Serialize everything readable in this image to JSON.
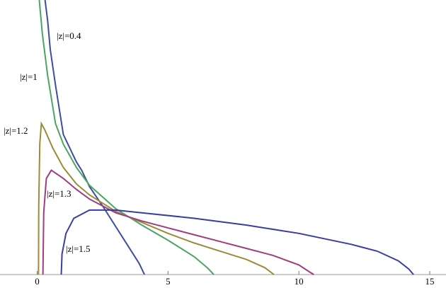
{
  "chart_data": {
    "type": "line",
    "xlim": [
      -1.15,
      15.27
    ],
    "ylim": [
      0,
      2
    ],
    "xticks": [
      0,
      5,
      10,
      15
    ],
    "series": [
      {
        "name": "|z|=0.4",
        "color": "#3c4ca2",
        "x": [
          0.3,
          0.4,
          0.5,
          0.7,
          1.0,
          1.5,
          1.7,
          2.0,
          2.5,
          3.0,
          3.5,
          3.9,
          4.1
        ],
        "values": [
          2.0,
          1.85,
          1.64,
          1.38,
          1.02,
          0.82,
          0.76,
          0.64,
          0.5,
          0.35,
          0.2,
          0.08,
          0
        ]
      },
      {
        "name": "|z|=1",
        "color": "#4aa564",
        "x": [
          0.08,
          0.2,
          0.4,
          0.7,
          1.0,
          1.5,
          2,
          3,
          4,
          5,
          6,
          6.5,
          6.75
        ],
        "values": [
          2.0,
          1.75,
          1.45,
          1.1,
          0.95,
          0.78,
          0.65,
          0.48,
          0.36,
          0.25,
          0.13,
          0.05,
          0
        ]
      },
      {
        "name": "|z|=1.2",
        "color": "#9b8b3a",
        "x": [
          0.05,
          0.06,
          0.1,
          0.16,
          0.3,
          0.6,
          1,
          1.5,
          2,
          3,
          4,
          5,
          6,
          7,
          8,
          8.7,
          9.05
        ],
        "values": [
          0,
          0.5,
          0.95,
          1.1,
          1.05,
          0.92,
          0.78,
          0.66,
          0.58,
          0.46,
          0.38,
          0.3,
          0.23,
          0.17,
          0.11,
          0.05,
          0
        ]
      },
      {
        "name": "|z|=1.3",
        "color": "#a03c80",
        "x": [
          0.22,
          0.25,
          0.35,
          0.54,
          1,
          1.5,
          2,
          3,
          4,
          5,
          6,
          7,
          8,
          9,
          10,
          10.4,
          10.57
        ],
        "values": [
          0,
          0.45,
          0.7,
          0.76,
          0.7,
          0.62,
          0.55,
          0.45,
          0.39,
          0.34,
          0.29,
          0.24,
          0.19,
          0.14,
          0.07,
          0.02,
          0
        ]
      },
      {
        "name": "|z|=1.5",
        "color": "#3b3da0",
        "x": [
          0.92,
          0.95,
          1.1,
          1.4,
          2,
          3,
          4,
          6,
          8,
          10,
          12,
          13,
          13.8,
          14.2,
          14.38
        ],
        "values": [
          0,
          0.15,
          0.3,
          0.41,
          0.47,
          0.47,
          0.45,
          0.41,
          0.36,
          0.3,
          0.22,
          0.17,
          0.1,
          0.04,
          0
        ]
      }
    ]
  }
}
